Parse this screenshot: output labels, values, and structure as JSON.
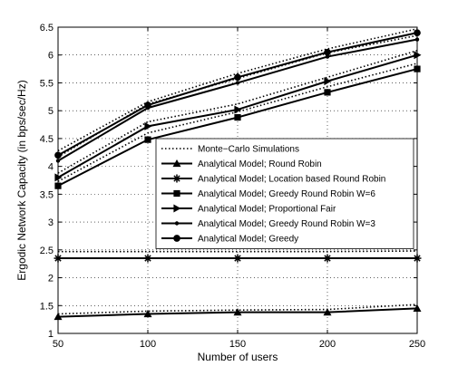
{
  "chart_data": {
    "type": "line",
    "title": "",
    "xlabel": "Number of users",
    "ylabel": "Ergodic Network Capacity (in bps/sec/Hz)",
    "x": [
      50,
      100,
      150,
      200,
      250
    ],
    "xlim": [
      50,
      250
    ],
    "ylim": [
      1,
      6.5
    ],
    "xticks": [
      "50",
      "100",
      "150",
      "200",
      "250"
    ],
    "yticks": [
      "1",
      "1.5",
      "2",
      "2.5",
      "3",
      "3.5",
      "4",
      "4.5",
      "5",
      "5.5",
      "6",
      "6.5"
    ],
    "grid": true,
    "legend_position": "center-right",
    "series": [
      {
        "name": "Analytical Model; Round Robin",
        "marker": "triangle-up",
        "values": [
          1.3,
          1.35,
          1.38,
          1.38,
          1.45
        ]
      },
      {
        "name": "Analytical Model; Location based Round Robin",
        "marker": "star",
        "values": [
          2.35,
          2.35,
          2.35,
          2.35,
          2.35
        ]
      },
      {
        "name": "Analytical Model; Greedy Round Robin W=6",
        "marker": "square",
        "values": [
          3.65,
          4.48,
          4.88,
          5.33,
          5.75
        ]
      },
      {
        "name": "Analytical Model; Proportional Fair",
        "marker": "triangle-right",
        "values": [
          3.8,
          4.72,
          5.02,
          5.53,
          6.0
        ]
      },
      {
        "name": "Analytical Model; Greedy Round Robin W=3",
        "marker": "dot",
        "values": [
          4.1,
          5.05,
          5.5,
          5.97,
          6.28
        ]
      },
      {
        "name": "Analytical Model; Greedy",
        "marker": "circle",
        "values": [
          4.2,
          5.1,
          5.6,
          6.05,
          6.4
        ]
      }
    ],
    "simulations": {
      "name": "Monte−Carlo Simulations",
      "style": "dotted",
      "lines": [
        [
          1.35,
          1.4,
          1.42,
          1.43,
          1.52
        ],
        [
          2.47,
          2.47,
          2.47,
          2.47,
          2.48
        ],
        [
          3.73,
          4.6,
          4.98,
          5.43,
          5.85
        ],
        [
          3.88,
          4.8,
          5.12,
          5.6,
          6.08
        ],
        [
          4.17,
          5.12,
          5.58,
          6.04,
          6.35
        ],
        [
          4.28,
          5.16,
          5.67,
          6.11,
          6.47
        ]
      ]
    }
  }
}
